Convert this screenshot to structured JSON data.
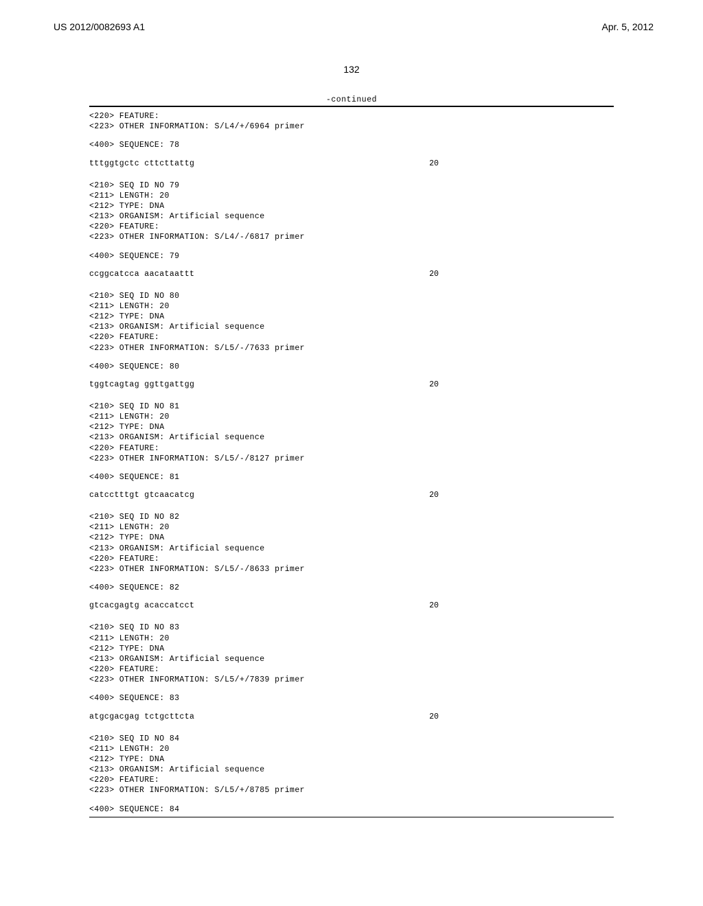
{
  "header": {
    "pub_number": "US 2012/0082693 A1",
    "pub_date": "Apr. 5, 2012",
    "page_number": "132"
  },
  "continued_label": "-continued",
  "first_block": {
    "feature": "<220> FEATURE:",
    "other_info": "<223> OTHER INFORMATION: S/L4/+/6964 primer",
    "seq_label": "<400> SEQUENCE: 78",
    "sequence": "tttggtgctc cttcttattg",
    "length": "20"
  },
  "entries": [
    {
      "seq_id": "<210> SEQ ID NO 79",
      "length_line": "<211> LENGTH: 20",
      "type_line": "<212> TYPE: DNA",
      "organism": "<213> ORGANISM: Artificial sequence",
      "feature": "<220> FEATURE:",
      "other_info": "<223> OTHER INFORMATION: S/L4/-/6817 primer",
      "seq_label": "<400> SEQUENCE: 79",
      "sequence": "ccggcatcca aacataattt",
      "length": "20"
    },
    {
      "seq_id": "<210> SEQ ID NO 80",
      "length_line": "<211> LENGTH: 20",
      "type_line": "<212> TYPE: DNA",
      "organism": "<213> ORGANISM: Artificial sequence",
      "feature": "<220> FEATURE:",
      "other_info": "<223> OTHER INFORMATION: S/L5/-/7633 primer",
      "seq_label": "<400> SEQUENCE: 80",
      "sequence": "tggtcagtag ggttgattgg",
      "length": "20"
    },
    {
      "seq_id": "<210> SEQ ID NO 81",
      "length_line": "<211> LENGTH: 20",
      "type_line": "<212> TYPE: DNA",
      "organism": "<213> ORGANISM: Artificial sequence",
      "feature": "<220> FEATURE:",
      "other_info": "<223> OTHER INFORMATION: S/L5/-/8127 primer",
      "seq_label": "<400> SEQUENCE: 81",
      "sequence": "catcctttgt gtcaacatcg",
      "length": "20"
    },
    {
      "seq_id": "<210> SEQ ID NO 82",
      "length_line": "<211> LENGTH: 20",
      "type_line": "<212> TYPE: DNA",
      "organism": "<213> ORGANISM: Artificial sequence",
      "feature": "<220> FEATURE:",
      "other_info": "<223> OTHER INFORMATION: S/L5/-/8633 primer",
      "seq_label": "<400> SEQUENCE: 82",
      "sequence": "gtcacgagtg acaccatcct",
      "length": "20"
    },
    {
      "seq_id": "<210> SEQ ID NO 83",
      "length_line": "<211> LENGTH: 20",
      "type_line": "<212> TYPE: DNA",
      "organism": "<213> ORGANISM: Artificial sequence",
      "feature": "<220> FEATURE:",
      "other_info": "<223> OTHER INFORMATION: S/L5/+/7839 primer",
      "seq_label": "<400> SEQUENCE: 83",
      "sequence": "atgcgacgag tctgcttcta",
      "length": "20"
    }
  ],
  "last_block": {
    "seq_id": "<210> SEQ ID NO 84",
    "length_line": "<211> LENGTH: 20",
    "type_line": "<212> TYPE: DNA",
    "organism": "<213> ORGANISM: Artificial sequence",
    "feature": "<220> FEATURE:",
    "other_info": "<223> OTHER INFORMATION: S/L5/+/8785 primer",
    "seq_label": "<400> SEQUENCE: 84"
  }
}
